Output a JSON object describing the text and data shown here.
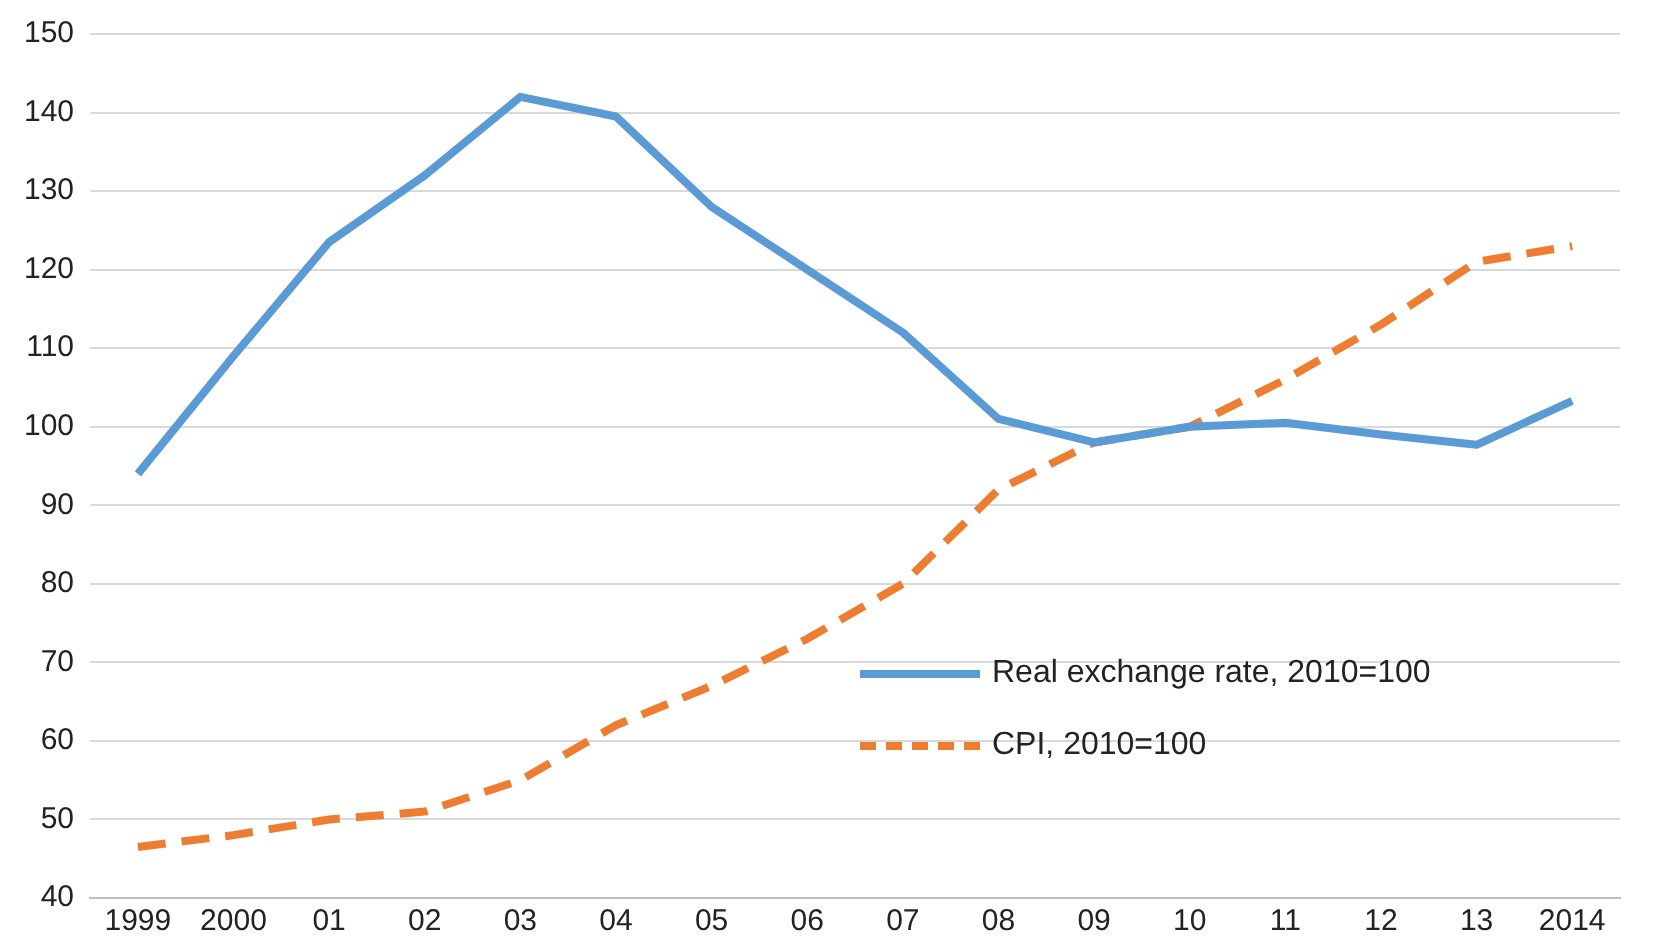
{
  "chart_data": {
    "type": "line",
    "categories": [
      "1999",
      "2000",
      "01",
      "02",
      "03",
      "04",
      "05",
      "06",
      "07",
      "08",
      "09",
      "10",
      "11",
      "12",
      "13",
      "2014"
    ],
    "series": [
      {
        "name": "Real exchange rate, 2010=100",
        "color": "#5b9bd5",
        "line_style": "solid",
        "values": [
          94,
          109,
          123.5,
          132,
          142,
          139.5,
          128,
          120,
          112,
          101,
          98,
          100,
          100.5,
          99,
          97.7,
          103.3
        ]
      },
      {
        "name": "CPI, 2010=100",
        "color": "#ed7d31",
        "line_style": "dashed",
        "values": [
          46.5,
          48,
          50,
          51,
          55,
          62,
          67,
          73,
          80,
          92,
          98,
          100,
          106,
          113,
          121,
          123
        ]
      }
    ],
    "ylim": [
      40,
      150
    ],
    "yticks": [
      40,
      50,
      60,
      70,
      80,
      90,
      100,
      110,
      120,
      130,
      140,
      150
    ],
    "grid": "y",
    "legend": "bottom right",
    "marker": "none"
  }
}
